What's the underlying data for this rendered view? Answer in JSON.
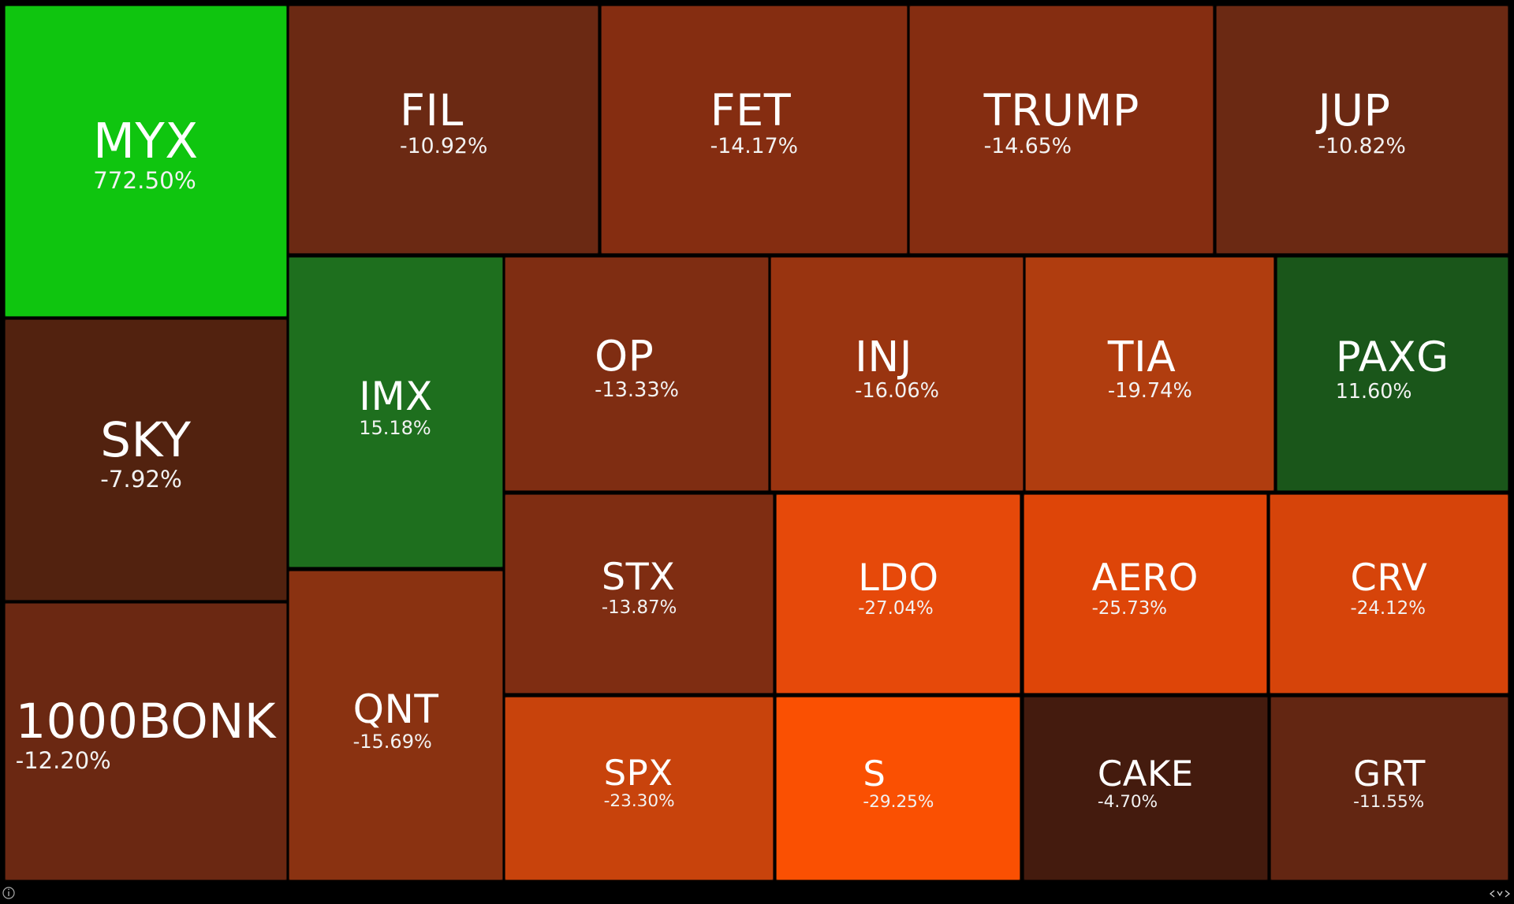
{
  "chart_data": {
    "type": "treemap",
    "categories": [
      "MYX",
      "SKY",
      "1000BONK",
      "FIL",
      "FET",
      "TRUMP",
      "JUP",
      "IMX",
      "QNT",
      "OP",
      "INJ",
      "TIA",
      "PAXG",
      "STX",
      "LDO",
      "AERO",
      "CRV",
      "SPX",
      "S",
      "CAKE",
      "GRT"
    ],
    "values": [
      772.5,
      -7.92,
      -12.2,
      -10.92,
      -14.17,
      -14.65,
      -10.82,
      15.18,
      -15.69,
      -13.33,
      -16.06,
      -19.74,
      11.6,
      -13.87,
      -27.04,
      -25.73,
      -24.12,
      -23.3,
      -29.25,
      -4.7,
      -11.55
    ],
    "value_labels": [
      "772.50%",
      "-7.92%",
      "-12.20%",
      "-10.92%",
      "-14.17%",
      "-14.65%",
      "-10.82%",
      "15.18%",
      "-15.69%",
      "-13.33%",
      "-16.06%",
      "-19.74%",
      "11.60%",
      "-13.87%",
      "-27.04%",
      "-25.73%",
      "-24.12%",
      "-23.30%",
      "-29.25%",
      "-4.70%",
      "-11.55%"
    ],
    "colors": [
      "#0fc50f",
      "#52220f",
      "#6b2812",
      "#6b2913",
      "#852d11",
      "#852d11",
      "#6b2913",
      "#1e6f1e",
      "#8a3211",
      "#7f2d12",
      "#993410",
      "#b03d0f",
      "#1a561a",
      "#7f2d12",
      "#e6490a",
      "#de4508",
      "#d6440a",
      "#c8430c",
      "#fa5002",
      "#441b0e",
      "#632612"
    ]
  }
}
